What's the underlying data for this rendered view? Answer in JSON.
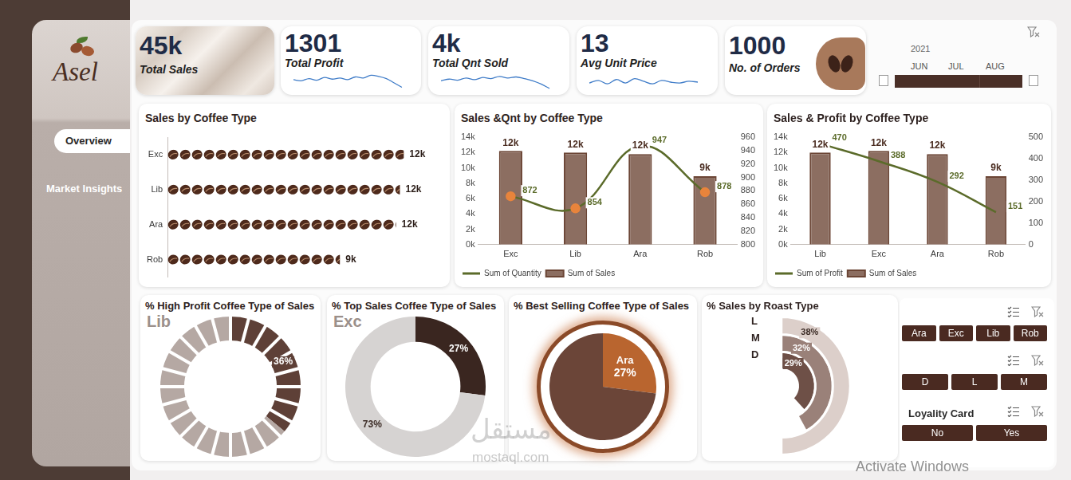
{
  "header": {
    "logo": "Asel"
  },
  "nav": [
    "Overview",
    "Market Insights"
  ],
  "kpis": [
    {
      "value": "45k",
      "label": "Total Sales"
    },
    {
      "value": "1301",
      "label": "Total Profit",
      "sparkline": {
        "type": "line",
        "values": [
          52,
          50,
          54,
          51,
          56,
          53,
          55,
          52,
          57,
          55,
          60,
          58,
          54,
          46,
          38
        ],
        "ylim": [
          30,
          65
        ],
        "color": "#3f7cc8",
        "tick_labels": false
      }
    },
    {
      "value": "4k",
      "label": "Total Qnt Sold",
      "sparkline": {
        "type": "line",
        "values": [
          50,
          53,
          51,
          55,
          52,
          56,
          54,
          58,
          55,
          57,
          54,
          50,
          44,
          36
        ],
        "ylim": [
          30,
          65
        ],
        "color": "#3f7cc8",
        "tick_labels": false
      }
    },
    {
      "value": "13",
      "label": "Avg Unit Price",
      "sparkline": {
        "type": "line",
        "values": [
          50,
          53,
          49,
          54,
          50,
          55,
          52,
          49,
          53,
          51,
          50,
          52,
          51
        ],
        "ylim": [
          40,
          62
        ],
        "color": "#3f7cc8",
        "tick_labels": false
      }
    },
    {
      "value": "1000",
      "label": "No. of Orders"
    }
  ],
  "timeline": {
    "year": "2021",
    "months": [
      "JUN",
      "JUL",
      "AUG"
    ]
  },
  "chart_data": [
    {
      "type": "bar",
      "title": "Sales by Coffee Type",
      "orientation": "horizontal",
      "categories": [
        "Exc",
        "Lib",
        "Ara",
        "Rob"
      ],
      "values": [
        12200,
        12000,
        11800,
        8900
      ],
      "value_labels": [
        "12k",
        "12k",
        "12k",
        "9k"
      ],
      "data_labels": true,
      "color": "#4e2a1c",
      "xlim": [
        0,
        14000
      ],
      "tick_labels": "y",
      "grid": false
    },
    {
      "type": "bar",
      "title": "Sales &Qnt by Coffee Type",
      "categories": [
        "Exc",
        "Lib",
        "Ara",
        "Rob"
      ],
      "series": [
        {
          "name": "Sum of Sales",
          "type": "bar",
          "color": "#6b4535",
          "values": [
            12200,
            12000,
            11800,
            8900
          ],
          "value_labels": [
            "12k",
            "12k",
            "12k",
            "9k"
          ]
        },
        {
          "name": "Sum of Quantity",
          "type": "line",
          "axis": "y2",
          "color": "#5b6b2a",
          "marker": "circle",
          "values": [
            872,
            854,
            947,
            878
          ]
        }
      ],
      "ylim": [
        0,
        14000
      ],
      "yticks": [
        {
          "value": 0,
          "label": "0k"
        },
        {
          "value": 2000,
          "label": "2k"
        },
        {
          "value": 4000,
          "label": "4k"
        },
        {
          "value": 6000,
          "label": "6k"
        },
        {
          "value": 8000,
          "label": "8k"
        },
        {
          "value": 10000,
          "label": "10k"
        },
        {
          "value": 12000,
          "label": "12k"
        },
        {
          "value": 14000,
          "label": "14k"
        }
      ],
      "y2lim": [
        800,
        960
      ],
      "y2ticks": [
        800,
        820,
        840,
        860,
        880,
        900,
        920,
        940,
        960
      ],
      "data_labels": true,
      "legend": "bottom-left",
      "grid": false
    },
    {
      "type": "bar",
      "title": "Sales & Profit by Coffee Type",
      "categories": [
        "Lib",
        "Exc",
        "Ara",
        "Rob"
      ],
      "series": [
        {
          "name": "Sum of Sales",
          "type": "bar",
          "color": "#6b4535",
          "values": [
            12000,
            12200,
            11800,
            8900
          ],
          "value_labels": [
            "12k",
            "12k",
            "12k",
            "9k"
          ]
        },
        {
          "name": "Sum of Profit",
          "type": "line",
          "axis": "y2",
          "color": "#5b6b2a",
          "marker": "none",
          "values": [
            470,
            388,
            292,
            151
          ]
        }
      ],
      "ylim": [
        0,
        14000
      ],
      "yticks": [
        {
          "value": 0,
          "label": "0k"
        },
        {
          "value": 2000,
          "label": "2k"
        },
        {
          "value": 4000,
          "label": "4k"
        },
        {
          "value": 6000,
          "label": "6k"
        },
        {
          "value": 8000,
          "label": "8k"
        },
        {
          "value": 10000,
          "label": "10k"
        },
        {
          "value": 12000,
          "label": "12k"
        },
        {
          "value": 14000,
          "label": "14k"
        }
      ],
      "y2lim": [
        0,
        500
      ],
      "y2ticks": [
        0,
        100,
        200,
        300,
        400,
        500
      ],
      "data_labels": true,
      "legend": "bottom-left",
      "grid": false
    },
    {
      "type": "doughnut",
      "title": "% High Profit Coffee Type of Sales",
      "categories": [
        "Lib",
        null
      ],
      "values": [
        36,
        64
      ],
      "value_labels": [
        "36%",
        null
      ],
      "colors": [
        "#5e4037",
        "#b5a8a3"
      ],
      "data_labels": true
    },
    {
      "type": "doughnut",
      "title": "% Top Sales Coffee Type of Sales",
      "categories": [
        "Exc",
        null
      ],
      "values": [
        27,
        73
      ],
      "value_labels": [
        "27%",
        "73%"
      ],
      "colors": [
        "#3a2620",
        "#d6d3d2"
      ],
      "data_labels": true
    },
    {
      "type": "pie",
      "title": "% Best Selling Coffee Type of Sales",
      "categories": [
        "Ara",
        null
      ],
      "values": [
        27,
        73
      ],
      "value_labels": [
        "27%",
        null
      ],
      "colors": [
        "#b9652f",
        "#6b4538"
      ],
      "data_labels": true
    },
    {
      "type": "radial_bar",
      "title": "% Sales by Roast Type",
      "categories": [
        "L",
        "M",
        "D"
      ],
      "values": [
        38,
        32,
        29
      ],
      "value_labels": [
        "38%",
        "32%",
        "29%"
      ],
      "colors": [
        "#dccfca",
        "#9a8179",
        "#6e5047"
      ],
      "data_labels": true
    }
  ],
  "slicers": [
    {
      "items": [
        "Ara",
        "Exc",
        "Lib",
        "Rob"
      ]
    },
    {
      "items": [
        "D",
        "L",
        "M"
      ]
    },
    {
      "title": "Loyality Card",
      "items": [
        "No",
        "Yes"
      ]
    }
  ],
  "watermarks": [
    "مستقل",
    "mostaql.com",
    "Activate Windows"
  ]
}
